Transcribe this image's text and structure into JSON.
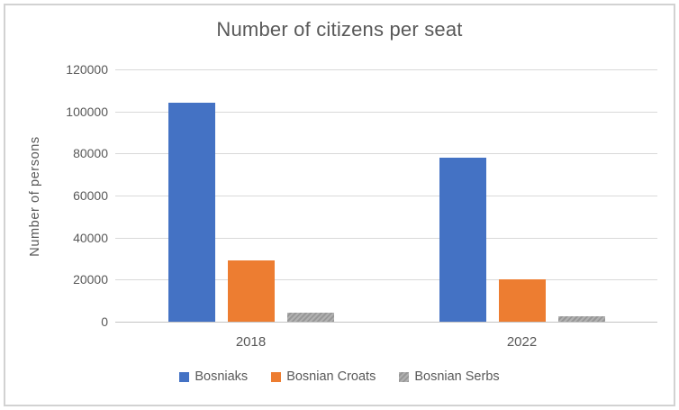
{
  "chart_data": {
    "type": "bar",
    "title": "Number of citizens per seat",
    "xlabel": "",
    "ylabel": "Number of persons",
    "categories": [
      "2018",
      "2022"
    ],
    "series": [
      {
        "name": "Bosniaks",
        "color": "#4472C4",
        "fill": "solid",
        "values": [
          104000,
          78000
        ]
      },
      {
        "name": "Bosnian Croats",
        "color": "#ED7D31",
        "fill": "solid",
        "values": [
          29000,
          20200
        ]
      },
      {
        "name": "Bosnian Serbs",
        "color": "#A5A5A5",
        "fill": "diagonal-hatch",
        "values": [
          4400,
          2500
        ]
      }
    ],
    "ylim": [
      0,
      120000
    ],
    "yticks": [
      0,
      20000,
      40000,
      60000,
      80000,
      100000,
      120000
    ],
    "grid": true,
    "legend_position": "bottom",
    "text_color": "#595959",
    "gridline_color": "#D9D9D9",
    "axisline_color": "#C3C3C3",
    "frame_border_color": "#D2D2D2"
  }
}
